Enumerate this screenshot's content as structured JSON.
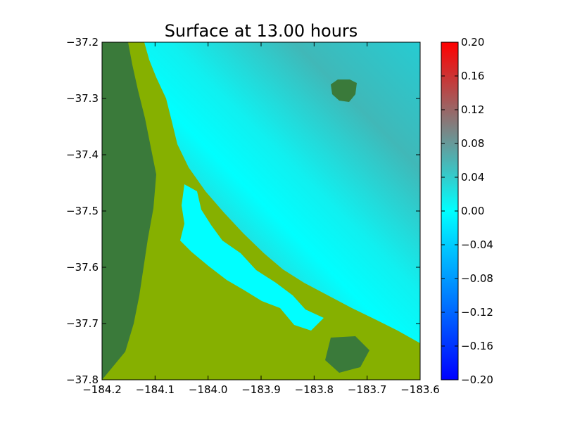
{
  "chart_data": {
    "type": "heatmap",
    "title": "Surface at 13.00 hours",
    "xlabel": "",
    "ylabel": "",
    "xlim": [
      -184.2,
      -183.6
    ],
    "ylim": [
      -37.8,
      -37.2
    ],
    "x_ticks": [
      "−184.2",
      "−184.1",
      "−184.0",
      "−183.9",
      "−183.8",
      "−183.7",
      "−183.6"
    ],
    "y_ticks": [
      "−37.2",
      "−37.3",
      "−37.4",
      "−37.5",
      "−37.6",
      "−37.7",
      "−37.8"
    ],
    "colorbar": {
      "range": [
        -0.2,
        0.2
      ],
      "ticks": [
        "0.20",
        "0.16",
        "0.12",
        "0.08",
        "0.04",
        "0.00",
        "−0.04",
        "−0.08",
        "−0.12",
        "−0.16",
        "−0.20"
      ],
      "colors": [
        "#0000ff",
        "#0080ff",
        "#00ffff",
        "#40b0b0",
        "#808080",
        "#c04040",
        "#ff0000"
      ]
    },
    "land_colors": {
      "inland": "#3a7a3a",
      "coastal": "#86b000"
    },
    "grid": false
  }
}
